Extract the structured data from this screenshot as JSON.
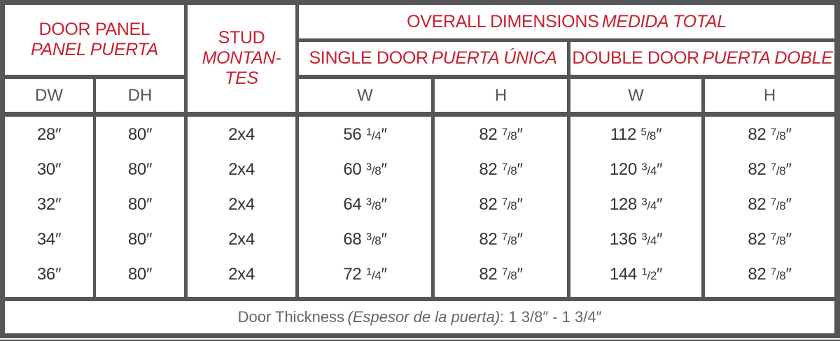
{
  "header": {
    "door_panel": "DOOR PANEL",
    "door_panel_es": "PANEL PUERTA",
    "stud": "STUD",
    "stud_es_1": "MONTAN-",
    "stud_es_2": "TES",
    "overall": "OVERALL DIMENSIONS",
    "overall_es": "MEDIDA TOTAL",
    "single": "SINGLE DOOR",
    "single_es": "PUERTA ÚNICA",
    "double": "DOUBLE DOOR",
    "double_es": "PUERTA DOBLE",
    "columns": [
      "DW",
      "DH",
      "W",
      "H",
      "W",
      "H"
    ]
  },
  "colors": {
    "accent": "#c8202f",
    "border": "#555658"
  },
  "rows": [
    {
      "dw": "28″",
      "dh": "80″",
      "stud": "2x4",
      "sw": [
        "56",
        "1",
        "4"
      ],
      "sh": [
        "82",
        "7",
        "8"
      ],
      "dbw": [
        "112",
        "5",
        "8"
      ],
      "dbh": [
        "82",
        "7",
        "8"
      ]
    },
    {
      "dw": "30″",
      "dh": "80″",
      "stud": "2x4",
      "sw": [
        "60",
        "3",
        "8"
      ],
      "sh": [
        "82",
        "7",
        "8"
      ],
      "dbw": [
        "120",
        "3",
        "4"
      ],
      "dbh": [
        "82",
        "7",
        "8"
      ]
    },
    {
      "dw": "32″",
      "dh": "80″",
      "stud": "2x4",
      "sw": [
        "64",
        "3",
        "8"
      ],
      "sh": [
        "82",
        "7",
        "8"
      ],
      "dbw": [
        "128",
        "3",
        "4"
      ],
      "dbh": [
        "82",
        "7",
        "8"
      ]
    },
    {
      "dw": "34″",
      "dh": "80″",
      "stud": "2x4",
      "sw": [
        "68",
        "3",
        "8"
      ],
      "sh": [
        "82",
        "7",
        "8"
      ],
      "dbw": [
        "136",
        "3",
        "4"
      ],
      "dbh": [
        "82",
        "7",
        "8"
      ]
    },
    {
      "dw": "36″",
      "dh": "80″",
      "stud": "2x4",
      "sw": [
        "72",
        "1",
        "4"
      ],
      "sh": [
        "82",
        "7",
        "8"
      ],
      "dbw": [
        "144",
        "1",
        "2"
      ],
      "dbh": [
        "82",
        "7",
        "8"
      ]
    }
  ],
  "footer": {
    "label": "Door Thickness",
    "label_es": "(Espesor de la puerta)",
    "value": ": 1 3/8″ - 1 3/4″"
  }
}
